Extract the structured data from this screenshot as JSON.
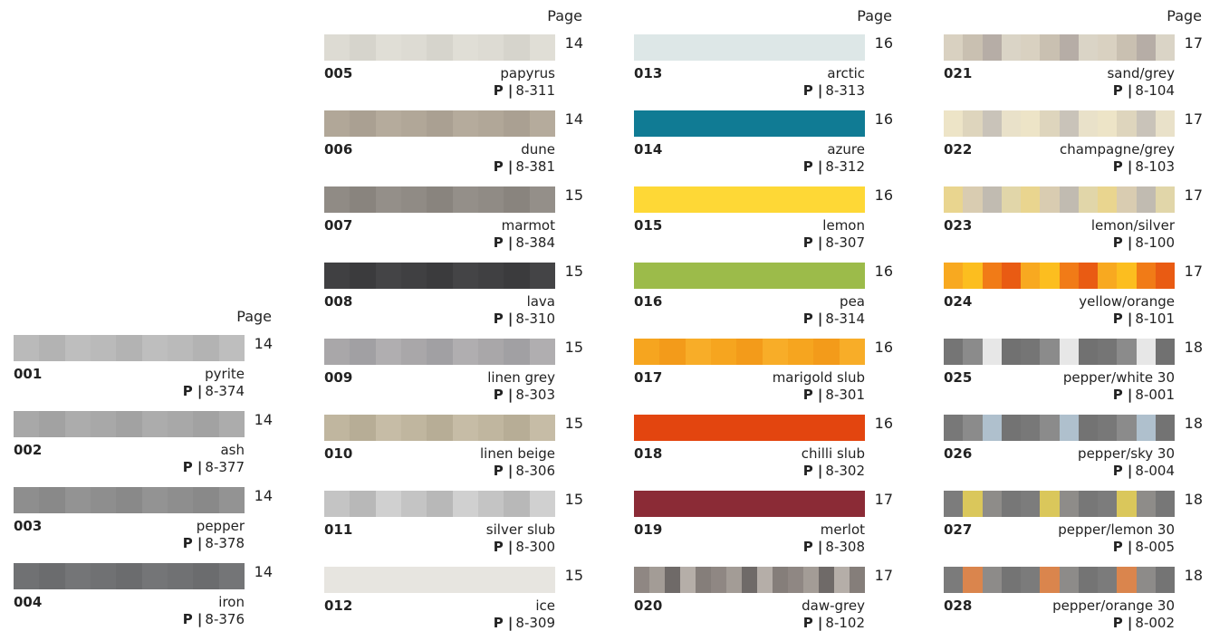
{
  "page_heading": "Page",
  "ref_prefix": "P |",
  "columns": [
    {
      "items": [
        {
          "code": "001",
          "name": "pyrite",
          "ref": "8-374",
          "page": 14,
          "colors": [
            "#bababa",
            "#b3b3b3",
            "#bebebe"
          ]
        },
        {
          "code": "002",
          "name": "ash",
          "ref": "8-377",
          "page": 14,
          "colors": [
            "#a8a8a8",
            "#a2a2a2",
            "#acacac"
          ]
        },
        {
          "code": "003",
          "name": "pepper",
          "ref": "8-378",
          "page": 14,
          "colors": [
            "#8e8e8e",
            "#898989",
            "#939393"
          ]
        },
        {
          "code": "004",
          "name": "iron",
          "ref": "8-376",
          "page": 14,
          "colors": [
            "#707173",
            "#6b6c6e",
            "#747577"
          ]
        }
      ]
    },
    {
      "items": [
        {
          "code": "005",
          "name": "papyrus",
          "ref": "8-311",
          "page": 14,
          "colors": [
            "#dddbd3",
            "#d6d4cc",
            "#e0ded6"
          ]
        },
        {
          "code": "006",
          "name": "dune",
          "ref": "8-381",
          "page": 14,
          "colors": [
            "#b1a798",
            "#aaa092",
            "#b5ab9c"
          ]
        },
        {
          "code": "007",
          "name": "marmot",
          "ref": "8-384",
          "page": 15,
          "colors": [
            "#908b85",
            "#89847e",
            "#948f89"
          ]
        },
        {
          "code": "008",
          "name": "lava",
          "ref": "8-310",
          "page": 15,
          "colors": [
            "#404042",
            "#3b3b3d",
            "#444446"
          ]
        },
        {
          "code": "009",
          "name": "linen grey",
          "ref": "8-303",
          "page": 15,
          "colors": [
            "#a9a7a9",
            "#a1a0a3",
            "#b0aeb0"
          ]
        },
        {
          "code": "010",
          "name": "linen beige",
          "ref": "8-306",
          "page": 15,
          "colors": [
            "#c0b69f",
            "#b7ad96",
            "#c6bca6"
          ]
        },
        {
          "code": "011",
          "name": "silver slub",
          "ref": "8-300",
          "page": 15,
          "colors": [
            "#c4c4c4",
            "#b8b8b8",
            "#d0d0d0"
          ]
        },
        {
          "code": "012",
          "name": "ice",
          "ref": "8-309",
          "page": 15,
          "colors": [
            "#e7e5e0"
          ]
        }
      ]
    },
    {
      "items": [
        {
          "code": "013",
          "name": "arctic",
          "ref": "8-313",
          "page": 16,
          "colors": [
            "#dde7e7"
          ]
        },
        {
          "code": "014",
          "name": "azure",
          "ref": "8-312",
          "page": 16,
          "colors": [
            "#107b94"
          ]
        },
        {
          "code": "015",
          "name": "lemon",
          "ref": "8-307",
          "page": 16,
          "colors": [
            "#fed836"
          ]
        },
        {
          "code": "016",
          "name": "pea",
          "ref": "8-314",
          "page": 16,
          "colors": [
            "#9cbb4a"
          ]
        },
        {
          "code": "017",
          "name": "marigold slub",
          "ref": "8-301",
          "page": 16,
          "colors": [
            "#f6a51f",
            "#f39b1a",
            "#f8ad28"
          ]
        },
        {
          "code": "018",
          "name": "chilli slub",
          "ref": "8-302",
          "page": 16,
          "colors": [
            "#e3450f"
          ]
        },
        {
          "code": "019",
          "name": "merlot",
          "ref": "8-308",
          "page": 17,
          "colors": [
            "#8b2b36"
          ]
        },
        {
          "code": "020",
          "name": "daw-grey",
          "ref": "8-102",
          "page": 17,
          "colors": [
            "#8f8783",
            "#a39c96",
            "#6f6a68",
            "#b5aea8",
            "#857e7a"
          ]
        }
      ]
    },
    {
      "items": [
        {
          "code": "021",
          "name": "sand/grey",
          "ref": "8-104",
          "page": 17,
          "colors": [
            "#d9d1c1",
            "#c9c0b1",
            "#b6ada6",
            "#dad4c6"
          ]
        },
        {
          "code": "022",
          "name": "champagne/grey",
          "ref": "8-103",
          "page": 17,
          "colors": [
            "#ede4c7",
            "#ded5bd",
            "#c9c3b9",
            "#e9e1c9"
          ]
        },
        {
          "code": "023",
          "name": "lemon/silver",
          "ref": "8-100",
          "page": 17,
          "colors": [
            "#e9d58f",
            "#d9ccb1",
            "#c1bbb1",
            "#e1d6a9"
          ]
        },
        {
          "code": "024",
          "name": "yellow/orange",
          "ref": "8-101",
          "page": 17,
          "colors": [
            "#f8a920",
            "#fcbe1f",
            "#f17b17",
            "#e95b13"
          ]
        },
        {
          "code": "025",
          "name": "pepper/white 30",
          "ref": "8-001",
          "page": 18,
          "colors": [
            "#757575",
            "#8b8b8b",
            "#e7e7e7",
            "#717171"
          ]
        },
        {
          "code": "026",
          "name": "pepper/sky 30",
          "ref": "8-004",
          "page": 18,
          "colors": [
            "#787878",
            "#8b8b8b",
            "#afc0cd",
            "#737373"
          ]
        },
        {
          "code": "027",
          "name": "pepper/lemon 30",
          "ref": "8-005",
          "page": 18,
          "colors": [
            "#7c7c7c",
            "#dac75b",
            "#8e8c89",
            "#777777"
          ]
        },
        {
          "code": "028",
          "name": "pepper/orange 30",
          "ref": "8-002",
          "page": 18,
          "colors": [
            "#7b7b7b",
            "#da854d",
            "#8d8b89",
            "#747474"
          ]
        }
      ]
    }
  ]
}
